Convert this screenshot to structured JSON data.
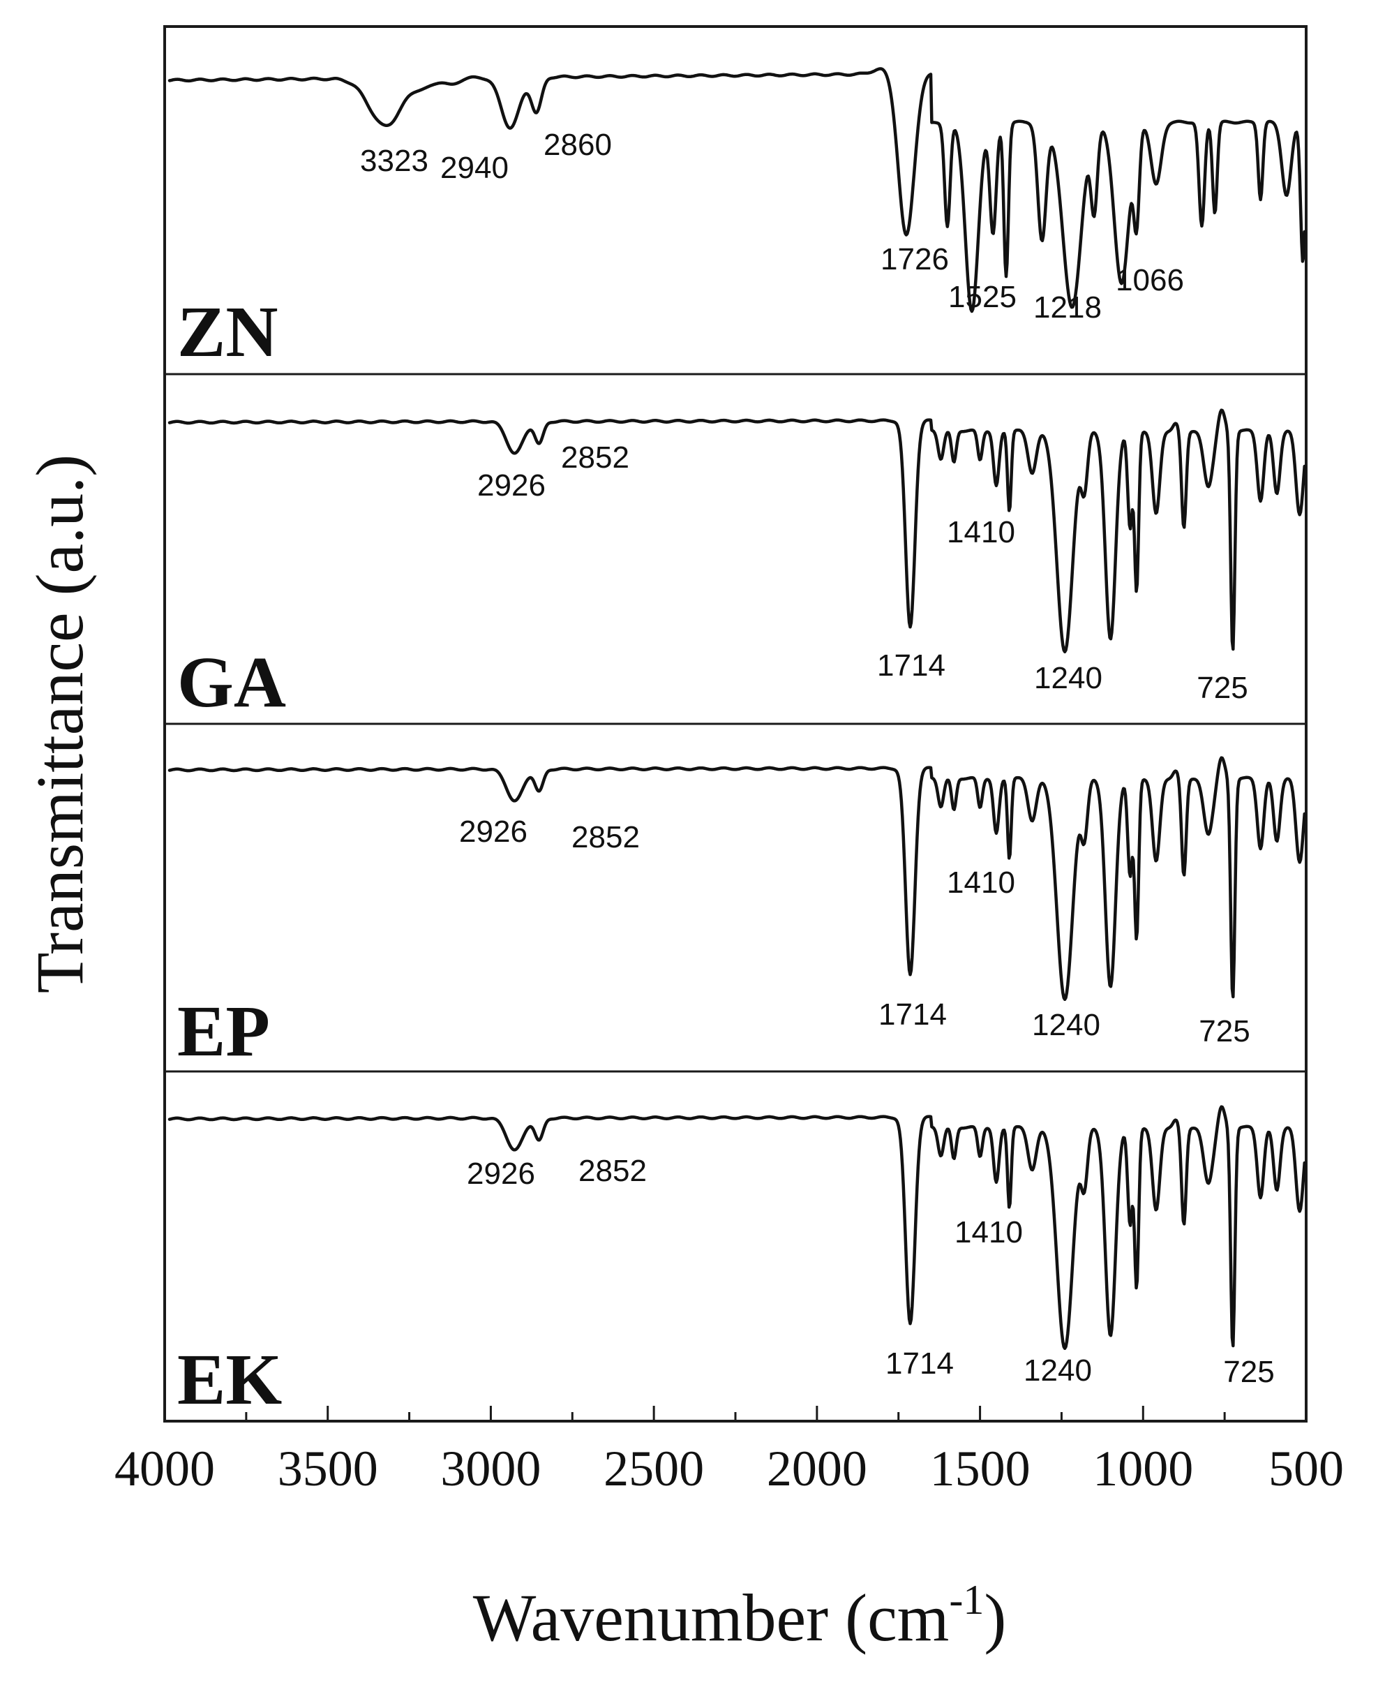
{
  "chart_data": {
    "type": "line",
    "title": "",
    "xlabel": "Wavenumber (cm",
    "xlabel_sup": "-1",
    "xlabel_close": ")",
    "ylabel": "Transmittance (a.u.)",
    "xlim": [
      4000,
      500
    ],
    "x_reversed": true,
    "x_ticks": [
      "4000",
      "3500",
      "3000",
      "2500",
      "2000",
      "1500",
      "1000",
      "500"
    ],
    "grid": false,
    "legend": "none",
    "panels": [
      {
        "name": "ZN",
        "peaks": [
          {
            "label": "3323",
            "x": 3323
          },
          {
            "label": "2940",
            "x": 2940
          },
          {
            "label": "2860",
            "x": 2860
          },
          {
            "label": "1726",
            "x": 1726
          },
          {
            "label": "1525",
            "x": 1525
          },
          {
            "label": "1218",
            "x": 1218
          },
          {
            "label": "1066",
            "x": 1066
          }
        ]
      },
      {
        "name": "GA",
        "peaks": [
          {
            "label": "2926",
            "x": 2926
          },
          {
            "label": "2852",
            "x": 2852
          },
          {
            "label": "1410",
            "x": 1410
          },
          {
            "label": "1714",
            "x": 1714
          },
          {
            "label": "1240",
            "x": 1240
          },
          {
            "label": "725",
            "x": 725
          }
        ]
      },
      {
        "name": "EP",
        "peaks": [
          {
            "label": "2926",
            "x": 2926
          },
          {
            "label": "2852",
            "x": 2852
          },
          {
            "label": "1410",
            "x": 1410
          },
          {
            "label": "1714",
            "x": 1714
          },
          {
            "label": "1240",
            "x": 1240
          },
          {
            "label": "725",
            "x": 725
          }
        ]
      },
      {
        "name": "EK",
        "peaks": [
          {
            "label": "2926",
            "x": 2926
          },
          {
            "label": "2852",
            "x": 2852
          },
          {
            "label": "1410",
            "x": 1410
          },
          {
            "label": "1714",
            "x": 1714
          },
          {
            "label": "1240",
            "x": 1240
          },
          {
            "label": "725",
            "x": 725
          }
        ]
      }
    ]
  }
}
